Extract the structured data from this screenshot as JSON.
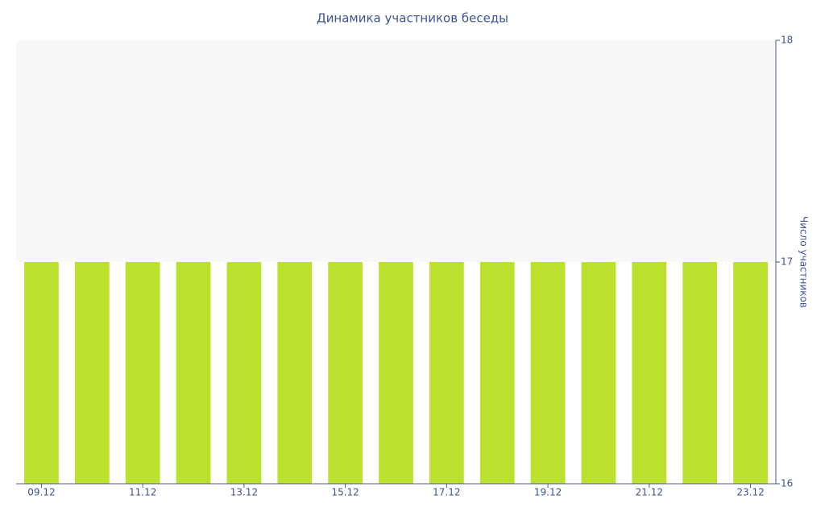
{
  "chart_data": {
    "type": "bar",
    "title": "Динамика участников беседы",
    "y_label": "Число участников",
    "categories": [
      "09.12",
      null,
      "11.12",
      null,
      "13.12",
      null,
      "15.12",
      null,
      "17.12",
      null,
      "19.12",
      null,
      "21.12",
      null,
      "23.12"
    ],
    "values": [
      17,
      17,
      17,
      17,
      17,
      17,
      17,
      17,
      17,
      17,
      17,
      17,
      17,
      17,
      17
    ],
    "color": "#bce02e",
    "ylim": [
      16,
      18
    ],
    "yticks": [
      16,
      17,
      18
    ],
    "y_axis_side": "right"
  }
}
